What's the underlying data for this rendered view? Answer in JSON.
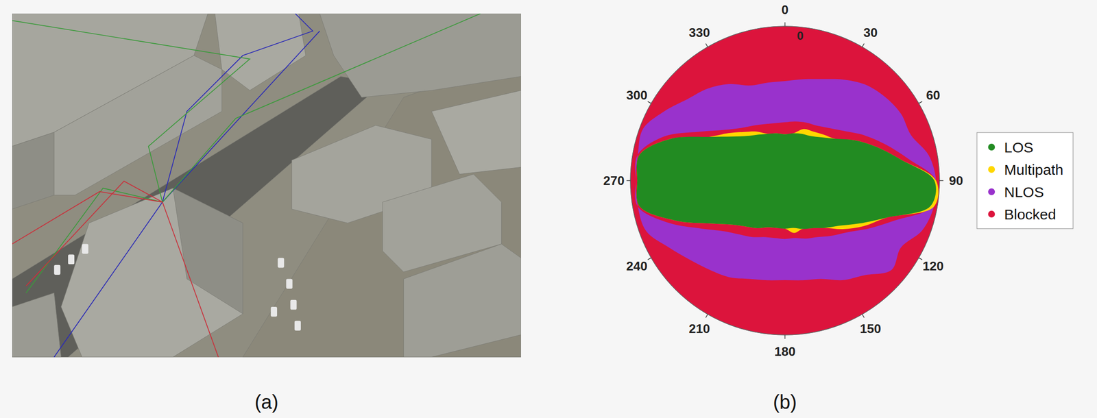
{
  "image_panel": {
    "label": "(a)"
  },
  "chart_data": {
    "type": "polar_area",
    "panel_label": "(b)",
    "theta": [
      0,
      10,
      20,
      30,
      40,
      50,
      60,
      70,
      80,
      90,
      100,
      110,
      120,
      130,
      140,
      150,
      160,
      170,
      180,
      190,
      200,
      210,
      220,
      230,
      240,
      250,
      260,
      270,
      280,
      290,
      300,
      310,
      320,
      330,
      340,
      350
    ],
    "thetaticks": [
      0,
      30,
      60,
      90,
      120,
      150,
      180,
      210,
      240,
      270,
      300,
      330
    ],
    "rlim": [
      90,
      0
    ],
    "rticks": [
      0
    ],
    "legend": "right",
    "series": [
      {
        "name": "LOS",
        "color": "#228b22",
        "values": [
          63,
          62,
          61,
          60,
          57,
          52,
          43,
          33,
          21,
          3,
          4,
          27,
          40,
          49,
          54,
          58,
          60,
          62,
          62,
          62,
          61,
          58,
          55,
          50,
          40,
          22,
          4,
          4,
          4,
          19,
          39,
          50,
          56,
          59,
          61,
          62
        ]
      },
      {
        "name": "Multipath",
        "color": "#ffd700",
        "values": [
          63,
          62,
          58,
          57,
          55,
          52,
          43,
          33,
          21,
          2,
          2,
          27,
          37,
          46,
          54,
          58,
          60,
          59,
          62,
          62,
          61,
          58,
          55,
          50,
          40,
          22,
          4,
          4,
          4,
          19,
          39,
          47,
          53,
          57,
          61,
          62
        ]
      },
      {
        "name": "NLOS",
        "color": "#9932cc",
        "values": [
          32,
          30,
          27,
          22,
          17,
          14,
          12,
          12,
          5,
          2,
          2,
          5,
          12,
          9,
          18,
          23,
          29,
          31,
          32,
          31,
          29,
          25,
          22,
          18,
          12,
          4,
          3,
          3,
          3,
          2,
          9,
          16,
          20,
          25,
          31,
          32
        ],
        "upper": [
          56,
          55,
          54,
          53,
          50,
          45,
          37,
          28,
          17,
          2,
          3,
          22,
          34,
          43,
          48,
          52,
          54,
          56,
          56,
          56,
          55,
          52,
          49,
          44,
          34,
          18,
          3,
          3,
          3,
          15,
          33,
          44,
          50,
          53,
          55,
          56
        ]
      },
      {
        "name": "Blocked",
        "color": "#dc143c",
        "values": [
          0,
          0,
          0,
          0,
          0,
          0,
          0,
          0,
          0,
          0,
          0,
          0,
          0,
          0,
          0,
          0,
          0,
          0,
          0,
          0,
          0,
          0,
          0,
          0,
          0,
          0,
          0,
          0,
          0,
          0,
          0,
          0,
          0,
          0,
          0,
          0
        ]
      }
    ]
  }
}
